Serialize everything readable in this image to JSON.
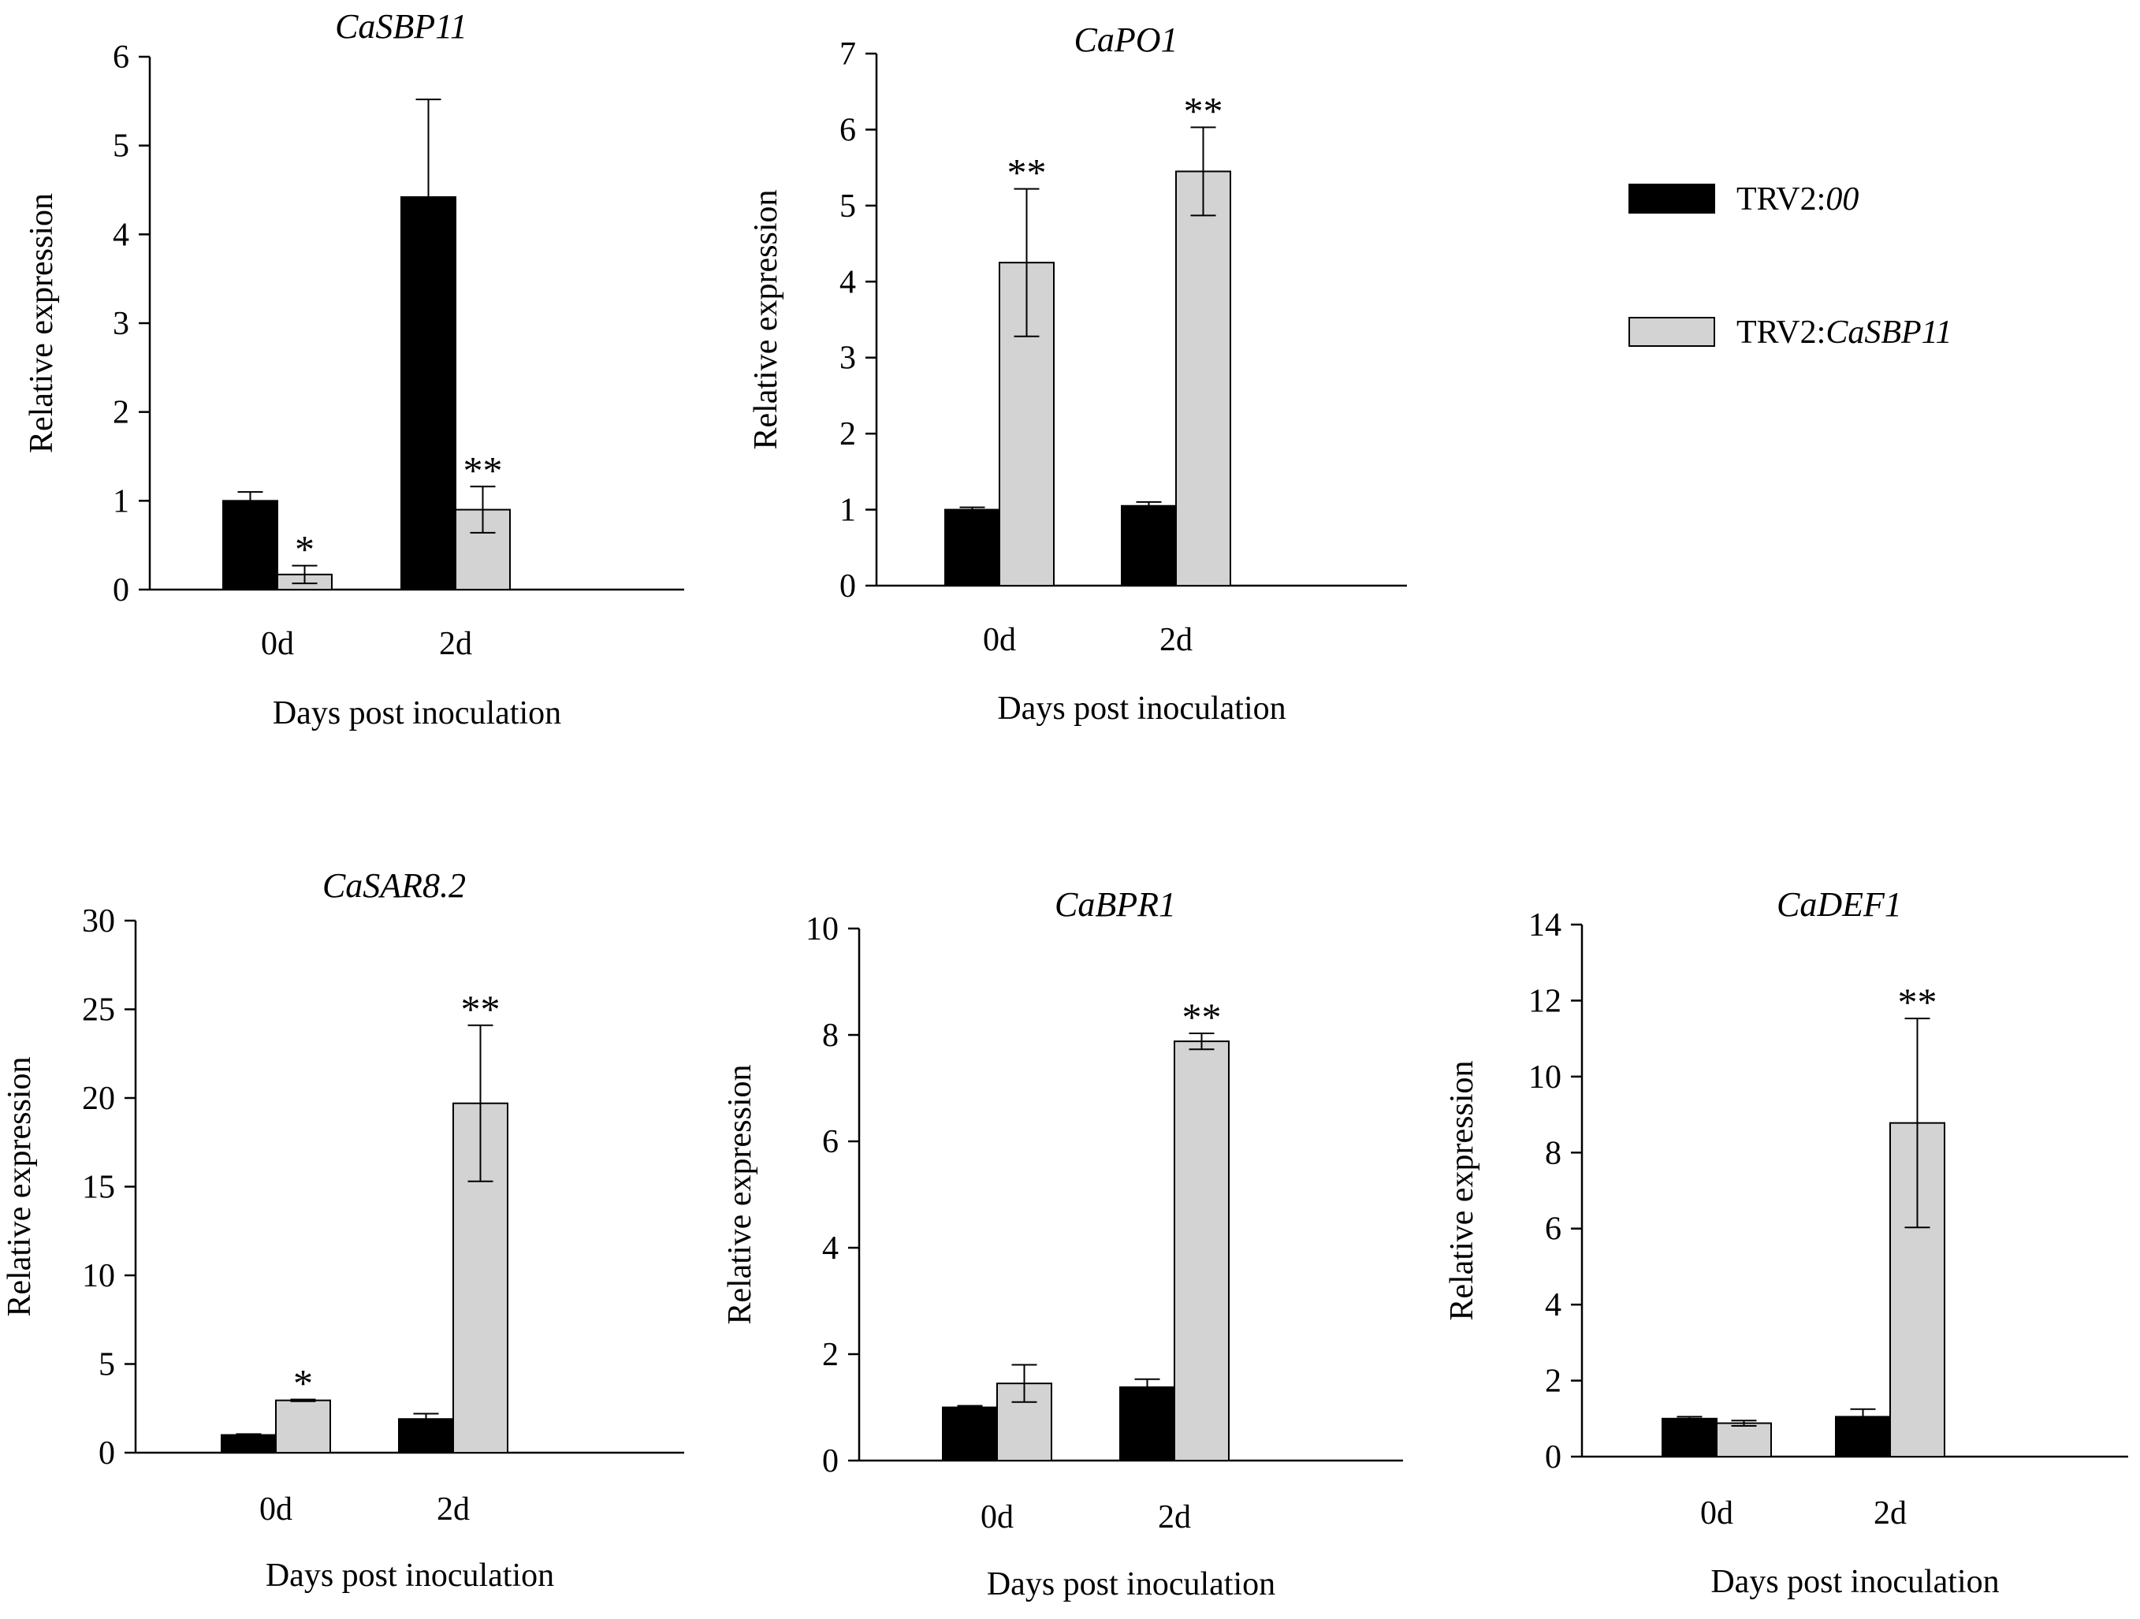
{
  "legend": {
    "items": [
      {
        "prefix": "TRV2:",
        "italic": "00",
        "color": "#000000"
      },
      {
        "prefix": "TRV2:",
        "italic": "CaSBP11",
        "color": "#d3d3d3"
      }
    ]
  },
  "chart_data": [
    {
      "type": "bar",
      "title": "CaSBP11",
      "xlabel": "Days post inoculation",
      "ylabel": "Relative expression",
      "categories": [
        "0d",
        "2d"
      ],
      "ylim": [
        0,
        6
      ],
      "yticks": [
        0,
        1,
        2,
        3,
        4,
        5,
        6
      ],
      "series": [
        {
          "name": "TRV2:00",
          "color": "#000000",
          "values": [
            1.0,
            4.42
          ],
          "errors": [
            0.1,
            1.1
          ]
        },
        {
          "name": "TRV2:CaSBP11",
          "color": "#d3d3d3",
          "values": [
            0.17,
            0.9
          ],
          "errors": [
            0.1,
            0.26
          ]
        }
      ],
      "annotations": [
        "*",
        "**"
      ]
    },
    {
      "type": "bar",
      "title": "CaPO1",
      "xlabel": "Days post inoculation",
      "ylabel": "Relative expression",
      "categories": [
        "0d",
        "2d"
      ],
      "ylim": [
        0,
        7
      ],
      "yticks": [
        0,
        1,
        2,
        3,
        4,
        5,
        6,
        7
      ],
      "series": [
        {
          "name": "TRV2:00",
          "color": "#000000",
          "values": [
            1.0,
            1.05
          ],
          "errors": [
            0.03,
            0.05
          ]
        },
        {
          "name": "TRV2:CaSBP11",
          "color": "#d3d3d3",
          "values": [
            4.25,
            5.45
          ],
          "errors": [
            0.97,
            0.58
          ]
        }
      ],
      "annotations": [
        "**",
        "**"
      ]
    },
    {
      "type": "bar",
      "title": "CaSAR8.2",
      "xlabel": "Days post inoculation",
      "ylabel": "Relative expression",
      "categories": [
        "0d",
        "2d"
      ],
      "ylim": [
        0,
        30
      ],
      "yticks": [
        0,
        5,
        10,
        15,
        20,
        25,
        30
      ],
      "series": [
        {
          "name": "TRV2:00",
          "color": "#000000",
          "values": [
            1.0,
            1.9
          ],
          "errors": [
            0.05,
            0.3
          ]
        },
        {
          "name": "TRV2:CaSBP11",
          "color": "#d3d3d3",
          "values": [
            2.95,
            19.7
          ],
          "errors": [
            0.05,
            4.4
          ]
        }
      ],
      "annotations": [
        "*",
        "**"
      ]
    },
    {
      "type": "bar",
      "title": "CaBPR1",
      "xlabel": "Days post inoculation",
      "ylabel": "Relative expression",
      "categories": [
        "0d",
        "2d"
      ],
      "ylim": [
        0,
        10
      ],
      "yticks": [
        0,
        2,
        4,
        6,
        8,
        10
      ],
      "series": [
        {
          "name": "TRV2:00",
          "color": "#000000",
          "values": [
            1.0,
            1.38
          ],
          "errors": [
            0.03,
            0.15
          ]
        },
        {
          "name": "TRV2:CaSBP11",
          "color": "#d3d3d3",
          "values": [
            1.45,
            7.88
          ],
          "errors": [
            0.35,
            0.15
          ]
        }
      ],
      "annotations": [
        "",
        "**"
      ]
    },
    {
      "type": "bar",
      "title": "CaDEF1",
      "xlabel": "Days post inoculation",
      "ylabel": "Relative expression",
      "categories": [
        "0d",
        "2d"
      ],
      "ylim": [
        0,
        14
      ],
      "yticks": [
        0,
        2,
        4,
        6,
        8,
        10,
        12,
        14
      ],
      "series": [
        {
          "name": "TRV2:00",
          "color": "#000000",
          "values": [
            1.0,
            1.05
          ],
          "errors": [
            0.05,
            0.2
          ]
        },
        {
          "name": "TRV2:CaSBP11",
          "color": "#d3d3d3",
          "values": [
            0.88,
            8.78
          ],
          "errors": [
            0.07,
            2.75
          ]
        }
      ],
      "annotations": [
        "",
        "**"
      ]
    }
  ]
}
